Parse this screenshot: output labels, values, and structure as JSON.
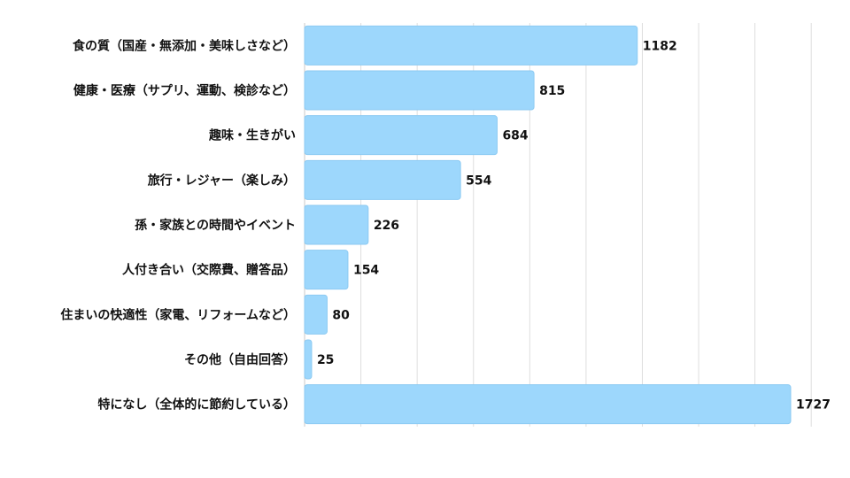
{
  "chart_data": {
    "type": "bar",
    "orientation": "horizontal",
    "categories": [
      "食の質（国産・無添加・美味しさなど）",
      "健康・医療（サプリ、運動、検診など）",
      "趣味・生きがい",
      "旅行・レジャー（楽しみ）",
      "孫・家族との時間やイベント",
      "人付き合い（交際費、贈答品）",
      "住まいの快適性（家電、リフォームなど）",
      "その他（自由回答）",
      "特になし（全体的に節約している）"
    ],
    "values": [
      1182,
      815,
      684,
      554,
      226,
      154,
      80,
      25,
      1727
    ],
    "xlim": [
      0,
      1800
    ],
    "grid": true,
    "bar_color": "#9dd7fc",
    "bar_stroke": "#8ccaf2",
    "grid_color": "#dedede",
    "axis_color": "#c8c8c8"
  }
}
